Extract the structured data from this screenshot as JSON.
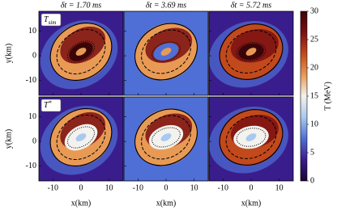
{
  "chart_data": {
    "type": "heatmap",
    "column_titles": [
      "δt = 1.70 ms",
      "δt = 3.69 ms",
      "δt = 5.72 ms"
    ],
    "row_labels": [
      {
        "symbol": "T",
        "subscript": "sim"
      },
      {
        "symbol": "T",
        "superscript": "*"
      }
    ],
    "xlabel": "x(km)",
    "ylabel": "y(km)",
    "xlim": [
      -15,
      15
    ],
    "xticks": [
      -10,
      0,
      10
    ],
    "ylim": [
      -16,
      18
    ],
    "yticks": [
      -10,
      0,
      10
    ],
    "colorbar": {
      "label": "T (MeV)",
      "lim": [
        0,
        30
      ],
      "ticks": [
        0,
        5,
        10,
        15,
        20,
        25,
        30
      ],
      "colormap": [
        "#1a0533",
        "#3a1d8c",
        "#4f6fd6",
        "#a9c9ee",
        "#f4f2ee",
        "#e89a55",
        "#c2491c",
        "#7a0f12",
        "#3a0508"
      ]
    }
  }
}
